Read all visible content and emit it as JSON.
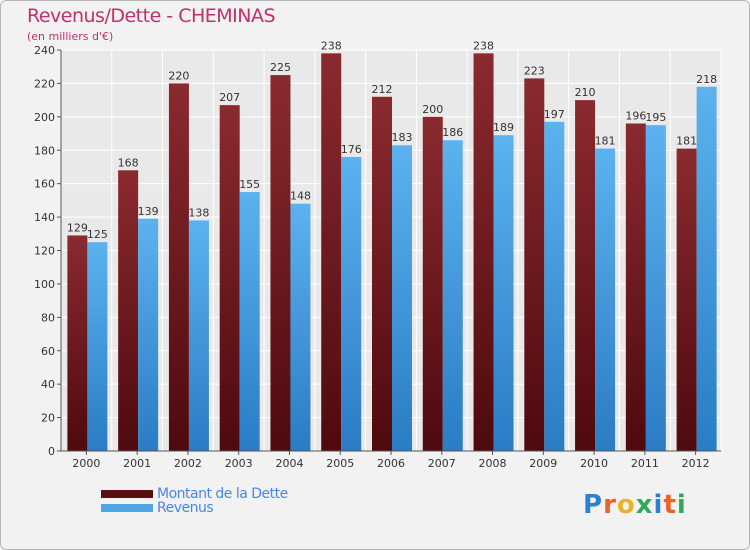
{
  "title": "Revenus/Dette - CHEMINAS",
  "subtitle": "(en milliers d'€)",
  "brand": {
    "text": "Proxiti",
    "letter_colors": [
      "#2e7fd0",
      "#e8622a",
      "#e8b22a",
      "#2eaa5a",
      "#2e7fd0",
      "#e8622a",
      "#2eaa5a"
    ]
  },
  "colors": {
    "dette": "#7b1e23",
    "dette_dark": "#5a0e12",
    "revenus": "#4ea6e6",
    "revenus_dark": "#2c7fc8",
    "text": "#333333",
    "grid": "#ffffff"
  },
  "chart_data": {
    "type": "bar",
    "categories": [
      "2000",
      "2001",
      "2002",
      "2003",
      "2004",
      "2005",
      "2006",
      "2007",
      "2008",
      "2009",
      "2010",
      "2011",
      "2012"
    ],
    "series": [
      {
        "name": "Montant de la Dette",
        "values": [
          129,
          168,
          220,
          207,
          225,
          238,
          212,
          200,
          238,
          223,
          210,
          196,
          181
        ]
      },
      {
        "name": "Revenus",
        "values": [
          125,
          139,
          138,
          155,
          148,
          176,
          183,
          186,
          189,
          197,
          181,
          195,
          218
        ]
      }
    ],
    "yticks": [
      0,
      20,
      40,
      60,
      80,
      100,
      120,
      140,
      160,
      180,
      200,
      220,
      240
    ],
    "ylim": [
      0,
      240
    ],
    "grid": true,
    "legend": "bottom-left"
  }
}
